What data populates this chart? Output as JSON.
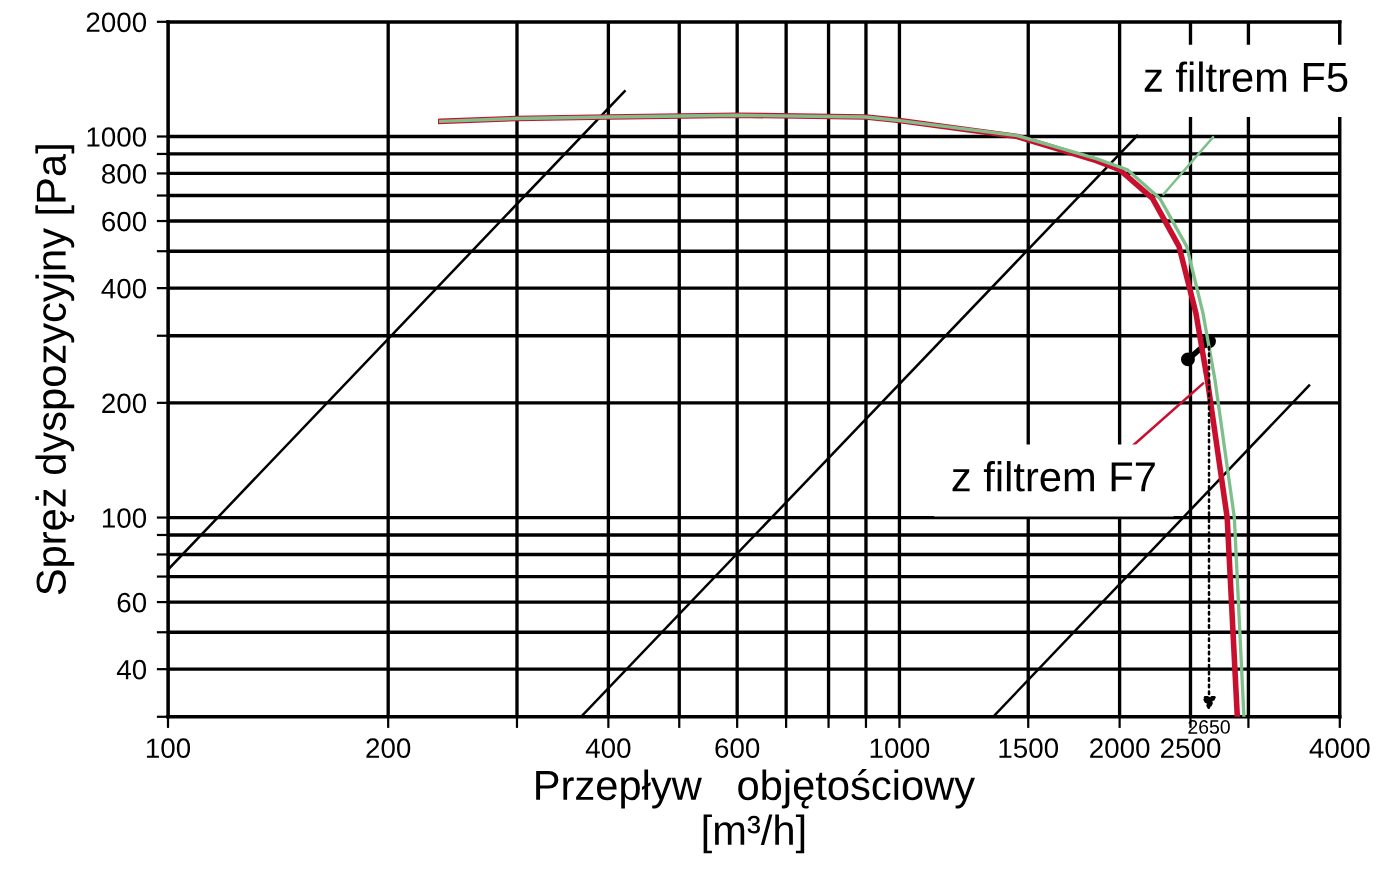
{
  "chart_data": {
    "type": "line",
    "xlabel": "Przepływ   objętościowy\n[m³/h]",
    "ylabel": "Spręż dyspozycyjny [Pa]",
    "log": "xy",
    "grid": true,
    "xlim": [
      100,
      4000
    ],
    "ylim": [
      30,
      2000
    ],
    "xticks": [
      100,
      200,
      {
        "value": 300,
        "label": null
      },
      400,
      {
        "value": 500,
        "label": null
      },
      600,
      {
        "value": 700,
        "label": null
      },
      {
        "value": 800,
        "label": null
      },
      {
        "value": 900,
        "label": null
      },
      1000,
      1500,
      2000,
      2500,
      {
        "value": 3000,
        "label": null
      },
      4000
    ],
    "yticks": [
      {
        "value": 30,
        "label": null
      },
      40,
      {
        "value": 50,
        "label": null
      },
      60,
      {
        "value": 70,
        "label": null
      },
      {
        "value": 80,
        "label": null
      },
      {
        "value": 90,
        "label": null
      },
      100,
      200,
      {
        "value": 300,
        "label": null
      },
      400,
      {
        "value": 500,
        "label": null
      },
      600,
      {
        "value": 700,
        "label": null
      },
      800,
      {
        "value": 900,
        "label": null
      },
      1000,
      2000
    ],
    "series": [
      {
        "color": "#000000",
        "x": [
          100,
          421
        ],
        "values": [
          73,
          1315
        ]
      },
      {
        "color": "#000000",
        "x": [
          367,
          2113
        ],
        "values": [
          30,
          1005
        ]
      },
      {
        "color": "#000000",
        "x": [
          1343,
          3631
        ],
        "values": [
          30,
          222
        ]
      },
      {
        "name": "z filtrem F7",
        "color": "#c8102e",
        "x": [
          236,
          300,
          400,
          600,
          900,
          1000,
          1449,
          1858,
          2000,
          2218,
          2411,
          2543,
          2636,
          2806,
          2897
        ],
        "values": [
          1096,
          1115,
          1125,
          1137,
          1125,
          1101,
          1000,
          864,
          818,
          688,
          515,
          344,
          230,
          100,
          30
        ]
      },
      {
        "name": "z filtrem F5",
        "color": "#7fc08a",
        "x": [
          236,
          300,
          400,
          600,
          900,
          1000,
          1449,
          1858,
          2050,
          2270,
          2470,
          2600,
          2700,
          2870,
          2958
        ],
        "values": [
          1096,
          1115,
          1125,
          1137,
          1125,
          1101,
          1005,
          875,
          818,
          688,
          515,
          344,
          230,
          100,
          30
        ]
      },
      {
        "color": "#000000",
        "marker": "circle",
        "x": [
          2480,
          2650
        ],
        "values": [
          260,
          290
        ]
      }
    ],
    "annotations": [
      {
        "text": "2650",
        "x": 2650,
        "y": 290
      }
    ]
  }
}
